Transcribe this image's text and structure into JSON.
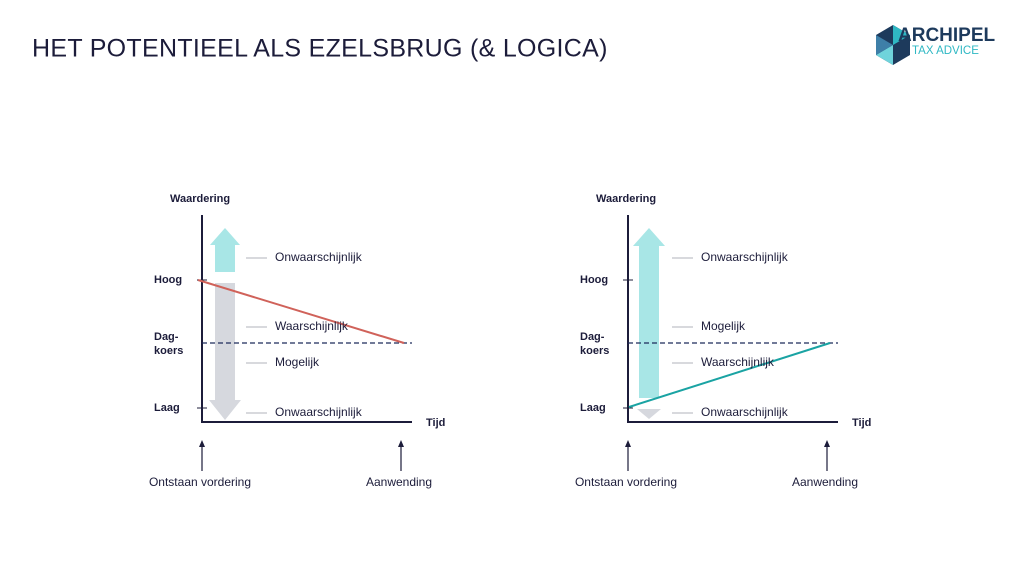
{
  "header": {
    "title": "HET POTENTIEEL ALS EZELSBRUG (& LOGICA)"
  },
  "logo": {
    "name": "ARCHIPEL",
    "tagline": "TAX ADVICE"
  },
  "diagrams": [
    {
      "y_axis": "Waardering",
      "x_axis": "Tijd",
      "levels": {
        "high": "Hoog",
        "day_rate": [
          "Dag-",
          "koers"
        ],
        "low": "Laag"
      },
      "zones": [
        "Onwaarschijnlijk",
        "Waarschijnlijk",
        "Mogelijk",
        "Onwaarschijnlijk"
      ],
      "events": [
        "Ontstaan vordering",
        "Aanwending"
      ]
    },
    {
      "y_axis": "Waardering",
      "x_axis": "Tijd",
      "levels": {
        "high": "Hoog",
        "day_rate": [
          "Dag-",
          "koers"
        ],
        "low": "Laag"
      },
      "zones": [
        "Onwaarschijnlijk",
        "Mogelijk",
        "Waarschijnlijk",
        "Onwaarschijnlijk"
      ],
      "events": [
        "Ontstaan vordering",
        "Aanwending"
      ]
    }
  ]
}
